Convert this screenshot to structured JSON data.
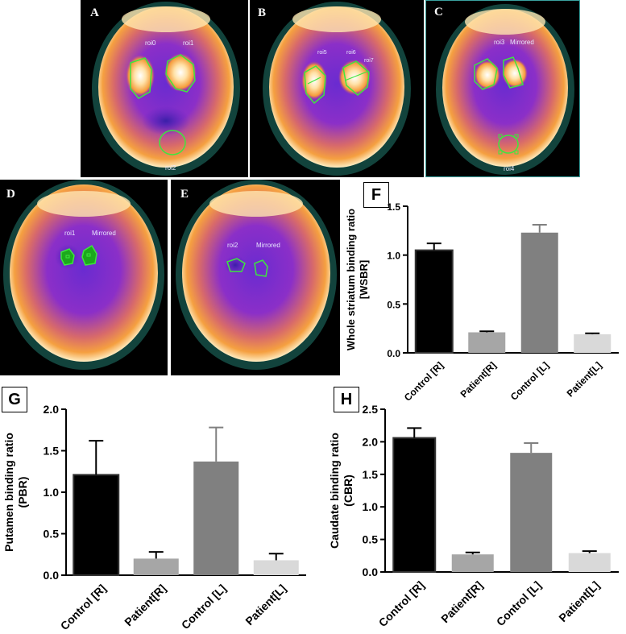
{
  "scans": {
    "A": {
      "label": "A",
      "rois": [
        "roi0",
        "roi1",
        "roi2"
      ]
    },
    "B": {
      "label": "B",
      "rois": [
        "roi5",
        "roi6",
        "roi7"
      ]
    },
    "C": {
      "label": "C",
      "rois": [
        "roi3",
        "Mirrored",
        "roi4"
      ]
    },
    "D": {
      "label": "D",
      "rois": [
        "roi1",
        "Mirrored"
      ]
    },
    "E": {
      "label": "E",
      "rois": [
        "roi2",
        "Mirrored"
      ]
    }
  },
  "colors": {
    "roi_outline": "#3ee63e",
    "control": "#000000",
    "patient": "#a6a6a6",
    "control_l": "#808080",
    "patient_l": "#d9d9d9"
  },
  "chart_data": [
    {
      "panel": "F",
      "type": "bar",
      "categories": [
        "Control [R]",
        "Patient[R]",
        "Control [L]",
        "Patient[L]"
      ],
      "values": [
        1.05,
        0.21,
        1.23,
        0.19
      ],
      "errors": [
        0.07,
        0.01,
        0.08,
        0.01
      ],
      "colors": [
        "#000000",
        "#a6a6a6",
        "#808080",
        "#d9d9d9"
      ],
      "ylabel": "Whole striatum binding ratio\n[WSBR]",
      "ylim": [
        0,
        1.5
      ],
      "yticks": [
        "0.0",
        "0.5",
        "1.0",
        "1.5"
      ]
    },
    {
      "panel": "G",
      "type": "bar",
      "categories": [
        "Control [R]",
        "Patient[R]",
        "Control [L]",
        "Patient[L]"
      ],
      "values": [
        1.21,
        0.2,
        1.37,
        0.18
      ],
      "errors": [
        0.41,
        0.08,
        0.41,
        0.08
      ],
      "colors": [
        "#000000",
        "#a6a6a6",
        "#808080",
        "#d9d9d9"
      ],
      "ylabel": "Putamen binding ratio\n(PBR)",
      "ylim": [
        0,
        2.0
      ],
      "yticks": [
        "0.0",
        "0.5",
        "1.0",
        "1.5",
        "2.0"
      ]
    },
    {
      "panel": "H",
      "type": "bar",
      "categories": [
        "Control [R]",
        "Patient[R]",
        "Control [L]",
        "Patient[L]"
      ],
      "values": [
        2.06,
        0.27,
        1.83,
        0.29
      ],
      "errors": [
        0.15,
        0.03,
        0.15,
        0.03
      ],
      "colors": [
        "#000000",
        "#a6a6a6",
        "#808080",
        "#d9d9d9"
      ],
      "ylabel": "Caudate binding ratio\n(CBR)",
      "ylim": [
        0,
        2.5
      ],
      "yticks": [
        "0.0",
        "0.5",
        "1.0",
        "1.5",
        "2.0",
        "2.5"
      ]
    }
  ]
}
